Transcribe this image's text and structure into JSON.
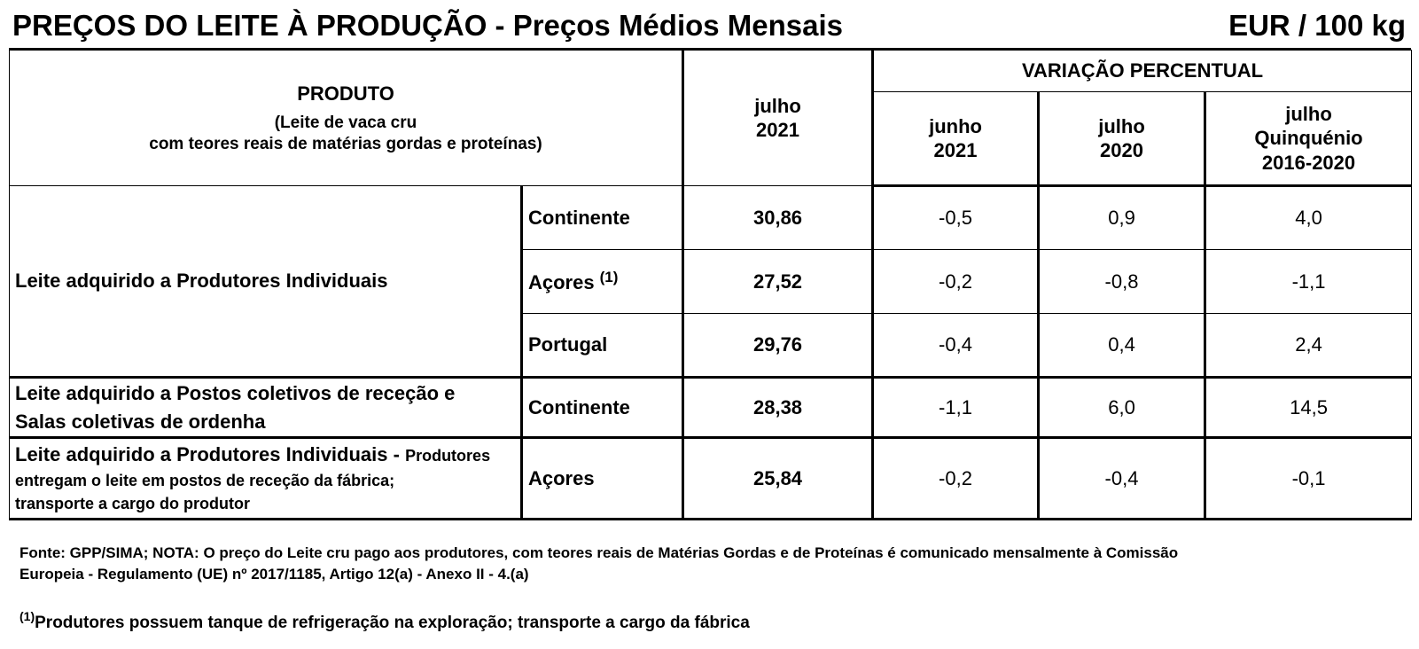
{
  "title": {
    "left": "PREÇOS DO LEITE À PRODUÇÃO - Preços Médios Mensais",
    "right": "EUR / 100 kg"
  },
  "header": {
    "produto": "PRODUTO",
    "produto_desc_line1": "(Leite de vaca cru",
    "produto_desc_line2": "com teores reais de matérias gordas e proteínas)",
    "main_month": "julho",
    "main_year": "2021",
    "variacao": "VARIAÇÃO PERCENTUAL",
    "cols": [
      {
        "line1": "junho",
        "line2": "2021",
        "line3": ""
      },
      {
        "line1": "julho",
        "line2": "2020",
        "line3": ""
      },
      {
        "line1": "julho",
        "line2": "Quinquénio",
        "line3": "2016-2020"
      }
    ]
  },
  "groups": {
    "g1_label": "Leite adquirido a Produtores Individuais",
    "g2_label_line1": "Leite adquirido a Postos coletivos de receção e",
    "g2_label_line2": "Salas coletivas de ordenha",
    "g3_label_bold": "Leite adquirido a Produtores Individuais - ",
    "g3_label_rest_1": "Produtores",
    "g3_label_rest_2": "entregam o leite em postos de receção da fábrica;",
    "g3_label_rest_3": "transporte a cargo do produtor"
  },
  "rows": [
    {
      "region": "Continente",
      "sup": "",
      "price": "30,86",
      "v1": "-0,5",
      "v2": "0,9",
      "v3": "4,0"
    },
    {
      "region": "Açores",
      "sup": "(1)",
      "price": "27,52",
      "v1": "-0,2",
      "v2": "-0,8",
      "v3": "-1,1"
    },
    {
      "region": "Portugal",
      "sup": "",
      "price": "29,76",
      "v1": "-0,4",
      "v2": "0,4",
      "v3": "2,4"
    },
    {
      "region": "Continente",
      "sup": "",
      "price": "28,38",
      "v1": "-1,1",
      "v2": "6,0",
      "v3": "14,5"
    },
    {
      "region": "Açores",
      "sup": "",
      "price": "25,84",
      "v1": "-0,2",
      "v2": "-0,4",
      "v3": "-0,1"
    }
  ],
  "notes": {
    "fonte_line1": "Fonte: GPP/SIMA; NOTA: O preço do Leite cru pago aos produtores, com teores reais de Matérias Gordas e de Proteínas é comunicado mensalmente à Comissão",
    "fonte_line2": "Europeia - Regulamento (UE) nº 2017/1185, Artigo 12(a) - Anexo II - 4.(a)",
    "footnote_mark": "(1)",
    "footnote_text": "Produtores possuem tanque de refrigeração na exploração; transporte a cargo da fábrica"
  }
}
